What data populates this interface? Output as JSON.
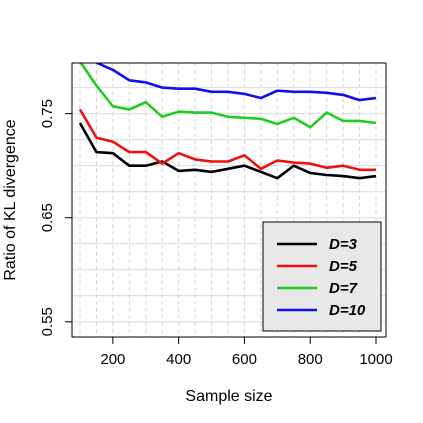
{
  "chart_data": {
    "type": "line",
    "title": "",
    "xlabel": "Sample size",
    "ylabel": "Ratio of KL divergence",
    "xlim": [
      100,
      1000
    ],
    "ylim": [
      0.545,
      0.79
    ],
    "xticks": [
      200,
      400,
      600,
      800,
      1000
    ],
    "xtick_labels": [
      "200",
      "400",
      "600",
      "800",
      "1000"
    ],
    "yticks": [
      0.55,
      0.65,
      0.75
    ],
    "ytick_labels": [
      "0.55",
      "0.65",
      "0.75"
    ],
    "grid": true,
    "legend_position": "bottom-right",
    "x": [
      100,
      150,
      200,
      250,
      300,
      350,
      400,
      450,
      500,
      550,
      600,
      650,
      700,
      750,
      800,
      850,
      900,
      950,
      1000
    ],
    "series": [
      {
        "name": "D=3",
        "color": "#000000",
        "values": [
          0.741,
          0.713,
          0.712,
          0.7,
          0.7,
          0.704,
          0.695,
          0.696,
          0.694,
          0.697,
          0.7,
          0.694,
          0.688,
          0.7,
          0.693,
          0.691,
          0.69,
          0.688,
          0.69
        ]
      },
      {
        "name": "D=5",
        "color": "#ee1111",
        "values": [
          0.754,
          0.727,
          0.723,
          0.713,
          0.713,
          0.702,
          0.712,
          0.706,
          0.704,
          0.704,
          0.71,
          0.697,
          0.705,
          0.703,
          0.702,
          0.698,
          0.7,
          0.696,
          0.696
        ]
      },
      {
        "name": "D=7",
        "color": "#22cc22",
        "values": [
          0.8,
          0.777,
          0.757,
          0.754,
          0.761,
          0.747,
          0.752,
          0.751,
          0.751,
          0.747,
          0.746,
          0.745,
          0.74,
          0.746,
          0.737,
          0.751,
          0.743,
          0.743,
          0.741
        ]
      },
      {
        "name": "D=10",
        "color": "#1111ee",
        "values": [
          0.823,
          0.799,
          0.792,
          0.782,
          0.78,
          0.775,
          0.774,
          0.774,
          0.771,
          0.771,
          0.769,
          0.765,
          0.772,
          0.771,
          0.771,
          0.77,
          0.768,
          0.763,
          0.765
        ]
      }
    ]
  }
}
